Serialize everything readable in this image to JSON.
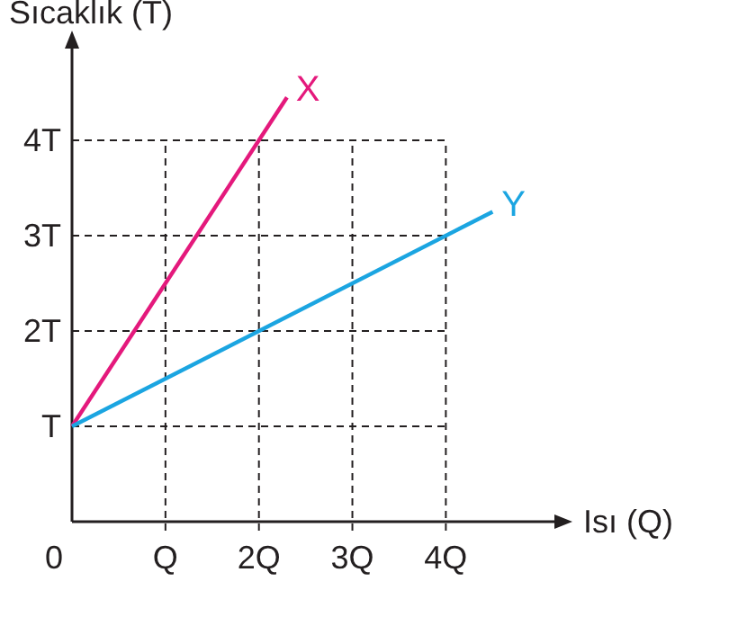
{
  "chart_data": {
    "type": "line",
    "xlabel": "Isı (Q)",
    "ylabel": "Sıcaklık (T)",
    "xlim": [
      0,
      5.2
    ],
    "ylim": [
      0,
      5
    ],
    "xticks": [
      0,
      {
        "value": 1,
        "label": "Q"
      },
      {
        "value": 2,
        "label": "2Q"
      },
      {
        "value": 3,
        "label": "3Q"
      },
      {
        "value": 4,
        "label": "4Q"
      }
    ],
    "yticks": [
      {
        "value": 1,
        "label": "T"
      },
      {
        "value": 2,
        "label": "2T"
      },
      {
        "value": 3,
        "label": "3T"
      },
      {
        "value": 4,
        "label": "4T"
      }
    ],
    "grid": true,
    "line_style": "solid",
    "marker": "none",
    "series": [
      {
        "name": "X",
        "color": "#e4197c",
        "x": [
          0,
          2.3
        ],
        "values": [
          1,
          4.45
        ]
      },
      {
        "name": "Y",
        "color": "#1ba5e1",
        "x": [
          0,
          4.5
        ],
        "values": [
          1,
          3.25
        ]
      }
    ]
  }
}
